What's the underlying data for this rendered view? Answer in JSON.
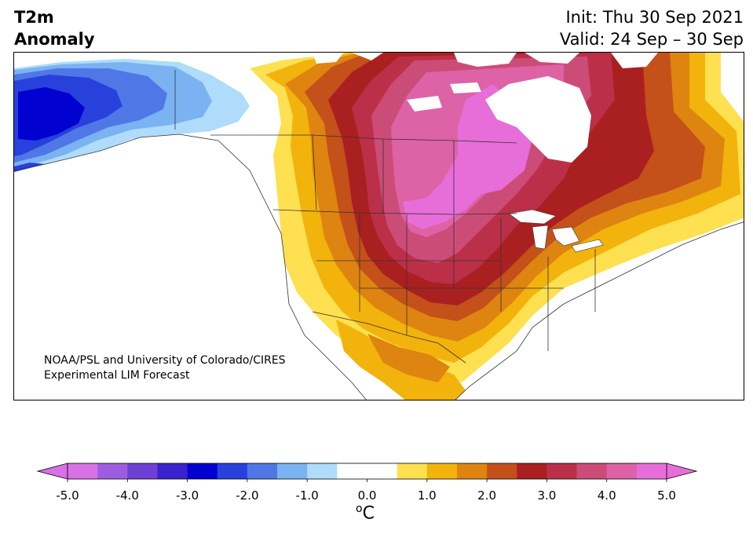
{
  "header": {
    "title_line1": "T2m",
    "title_line2": "Anomaly",
    "init": "Init: Thu 30 Sep 2021",
    "valid": "Valid: 24 Sep – 30 Sep"
  },
  "map": {
    "region": "North America",
    "credit_line1": "NOAA/PSL and University of Colorado/CIRES",
    "credit_line2": "Experimental LIM Forecast"
  },
  "colorbar": {
    "unit": "oC",
    "min": -5.0,
    "max": 5.0,
    "tick_labels": [
      "-5.0",
      "-4.0",
      "-3.0",
      "-2.0",
      "-1.0",
      "0.0",
      "1.0",
      "2.0",
      "3.0",
      "4.0",
      "5.0"
    ],
    "colors": [
      "#d870e6",
      "#9e5de0",
      "#6e40d6",
      "#3a22cc",
      "#0000d0",
      "#2840dc",
      "#4f78e6",
      "#7ab2f2",
      "#aedcfa",
      "#ffffff",
      "#ffffff",
      "#fee050",
      "#f2b30c",
      "#de8410",
      "#c4501a",
      "#aa2020",
      "#bb3048",
      "#cc4c78",
      "#dd62a6",
      "#e76ed8"
    ]
  }
}
